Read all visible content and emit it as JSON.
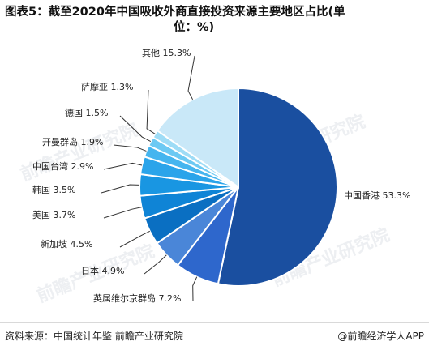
{
  "header": {
    "title_line1": "图表5：截至2020年中国吸收外商直接投资来源主要地区占比(单",
    "title_line2": "位：%)"
  },
  "footer": {
    "source": "资料来源：中国统计年鉴 前瞻产业研究院",
    "brand": "@前瞻经济学人APP"
  },
  "watermark": {
    "text": "前瞻产业研究院"
  },
  "chart_data": {
    "type": "pie",
    "slices": [
      {
        "label": "中国香港",
        "value": 53.3,
        "value_text": "53.3%",
        "color": "#1a4fa0"
      },
      {
        "label": "英属维尔京群岛",
        "value": 7.2,
        "value_text": "7.2%",
        "color": "#2e67cc"
      },
      {
        "label": "日本",
        "value": 4.9,
        "value_text": "4.9%",
        "color": "#4a86d8"
      },
      {
        "label": "新加坡",
        "value": 4.5,
        "value_text": "4.5%",
        "color": "#0a6fc2"
      },
      {
        "label": "美国",
        "value": 3.7,
        "value_text": "3.7%",
        "color": "#0f84d6"
      },
      {
        "label": "韩国",
        "value": 3.5,
        "value_text": "3.5%",
        "color": "#1996e2"
      },
      {
        "label": "中国台湾",
        "value": 2.9,
        "value_text": "2.9%",
        "color": "#2aa4ea"
      },
      {
        "label": "开曼群岛",
        "value": 1.9,
        "value_text": "1.9%",
        "color": "#45b5ef"
      },
      {
        "label": "德国",
        "value": 1.5,
        "value_text": "1.5%",
        "color": "#6cc9f3"
      },
      {
        "label": "萨摩亚",
        "value": 1.3,
        "value_text": "1.3%",
        "color": "#9edcf6"
      },
      {
        "label": "其他",
        "value": 15.3,
        "value_text": "15.3%",
        "color": "#c9e8f8"
      }
    ]
  }
}
